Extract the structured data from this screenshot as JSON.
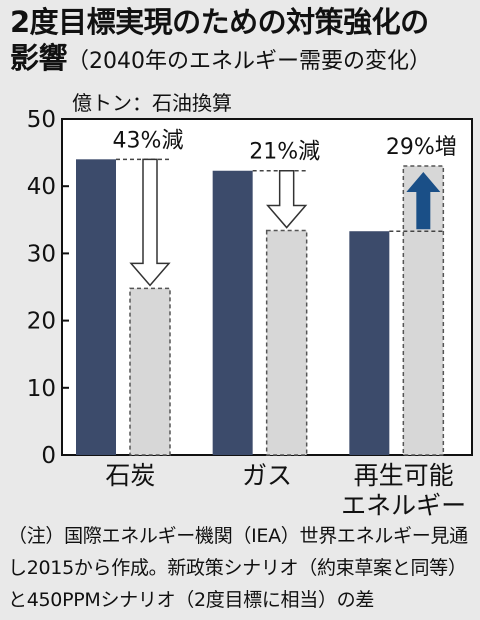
{
  "title": {
    "line1": "2度目標実現のための対策強化の",
    "line2_bold": "影響",
    "line2_sub": "（2040年のエネルギー需要の変化）"
  },
  "note": "（注）国際エネルギー機関（IEA）世界エネルギー見通し2015から作成。新政策シナリオ（約束草案と同等）と450PPMシナリオ（2度目標に相当）の差",
  "colors": {
    "background": "#e9e9e9",
    "new_policy_bar": "#3c4b6b",
    "scenario_450_bar": "#d7d7d7",
    "increase_arrow": "#1a4f87"
  },
  "chart_data": {
    "type": "bar",
    "unit": "億トン：石油換算",
    "categories": [
      "石炭",
      "ガス",
      "再生可能\nエネルギー"
    ],
    "series": [
      {
        "values": [
          44,
          42.3,
          33.3
        ]
      },
      {
        "values": [
          24.8,
          33.4,
          43
        ]
      }
    ],
    "ylim": [
      0,
      50
    ],
    "yticks": [
      0,
      10,
      20,
      30,
      40,
      50
    ],
    "annotations": [
      "43%減",
      "21%減",
      "29%増"
    ],
    "grid": false
  }
}
